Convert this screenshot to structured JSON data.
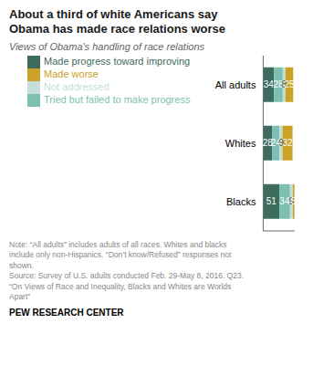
{
  "chart_data": {
    "type": "bar",
    "orientation": "horizontal",
    "stacked": true,
    "data_labels": true,
    "tick_labels": "y",
    "legend": "top left",
    "title": "About a third of white Americans say\nObama has made race relations worse",
    "subtitle": "Views of Obama's handling of race relations",
    "categories": [
      "All adults",
      "Whites",
      "Blacks"
    ],
    "series": [
      {
        "name": "Made progress toward improving",
        "color": "#3d6b5e",
        "values": [
          34,
          28,
          51
        ]
      },
      {
        "name": "Tried but failed to make progress",
        "color": "#7dbfb0",
        "values": [
          28,
          24,
          34
        ]
      },
      {
        "name": "Not addressed",
        "color": "#c5deda",
        "values": [
          8,
          9,
          9
        ]
      },
      {
        "name": "Made worse",
        "color": "#c9a227",
        "values": [
          25,
          32,
          5
        ]
      }
    ],
    "xlim": [
      0,
      100
    ],
    "annotations": [
      "Note: “All adults” includes adults of all races. Whites and blacks",
      "include only non-Hispanics. “Don’t know/Refused” responses not",
      "shown.",
      "Source: Survey of U.S. adults conducted Feb. 29-May 8, 2016. Q23.",
      "“On Views of Race and Inequality, Blacks and Whites are Worlds",
      "Apart”",
      "PEW RESEARCH CENTER"
    ]
  }
}
